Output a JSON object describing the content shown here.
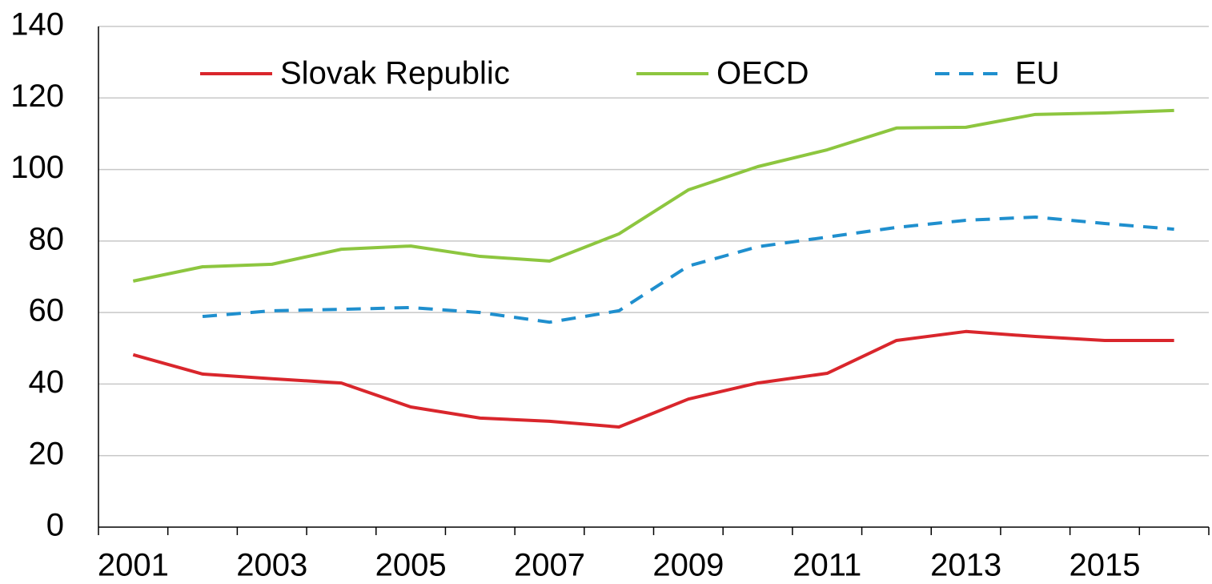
{
  "chart_data": {
    "type": "line",
    "categories": [
      "2001",
      null,
      "2003",
      null,
      "2005",
      null,
      "2007",
      null,
      "2009",
      null,
      "2011",
      null,
      "2013",
      null,
      "2015",
      null
    ],
    "series": [
      {
        "name": "Slovak Republic",
        "color": "#d9262c",
        "dash": false,
        "values": [
          48.2,
          42.8,
          41.5,
          40.3,
          33.6,
          30.5,
          29.6,
          28,
          35.8,
          40.3,
          43,
          52.2,
          54.7,
          53.3,
          52.2,
          52.2
        ]
      },
      {
        "name": "OECD",
        "color": "#8dc63f",
        "dash": false,
        "values": [
          68.8,
          72.8,
          73.5,
          77.7,
          78.6,
          75.7,
          74.4,
          82,
          94.3,
          100.8,
          105.5,
          111.6,
          111.8,
          115.4,
          115.8,
          116.5
        ]
      },
      {
        "name": "EU",
        "color": "#1f8fce",
        "dash": true,
        "values": [
          null,
          58.9,
          60.5,
          60.9,
          61.4,
          60,
          57.3,
          60.5,
          73,
          78.4,
          81.1,
          83.8,
          85.8,
          86.7,
          84.9,
          83.3
        ]
      }
    ],
    "ylim": [
      0,
      140
    ],
    "yticks": [
      0,
      20,
      40,
      60,
      80,
      100,
      120,
      140
    ],
    "grid": true,
    "legend": "top"
  }
}
